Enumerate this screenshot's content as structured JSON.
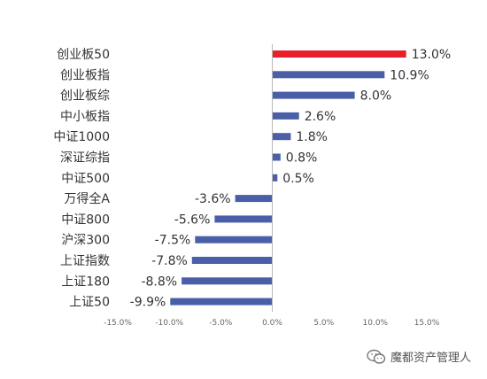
{
  "chart_data": {
    "type": "bar",
    "orientation": "horizontal",
    "categories": [
      "创业板50",
      "创业板指",
      "创业板综",
      "中小板指",
      "中证1000",
      "深证综指",
      "中证500",
      "万得全A",
      "中证800",
      "沪深300",
      "上证指数",
      "上证180",
      "上证50"
    ],
    "values": [
      13.0,
      10.9,
      8.0,
      2.6,
      1.8,
      0.8,
      0.5,
      -3.6,
      -5.6,
      -7.5,
      -7.8,
      -8.8,
      -9.9
    ],
    "value_labels": [
      "13.0%",
      "10.9%",
      "8.0%",
      "2.6%",
      "1.8%",
      "0.8%",
      "0.5%",
      "-3.6%",
      "-5.6%",
      "-7.5%",
      "-7.8%",
      "-8.8%",
      "-9.9%"
    ],
    "xlim": [
      -15,
      15
    ],
    "x_ticks": [
      -15,
      -10,
      -5,
      0,
      5,
      10,
      15
    ],
    "x_tick_labels": [
      "-15.0%",
      "-10.0%",
      "-5.0%",
      "0.0%",
      "5.0%",
      "10.0%",
      "15.0%"
    ],
    "grid": false,
    "colors": {
      "default": "#4a5fa8",
      "highlight": "#e8202a"
    },
    "highlight_index": 0
  },
  "watermark": {
    "text": "魔都资产管理人",
    "icon": "wechat-icon"
  }
}
